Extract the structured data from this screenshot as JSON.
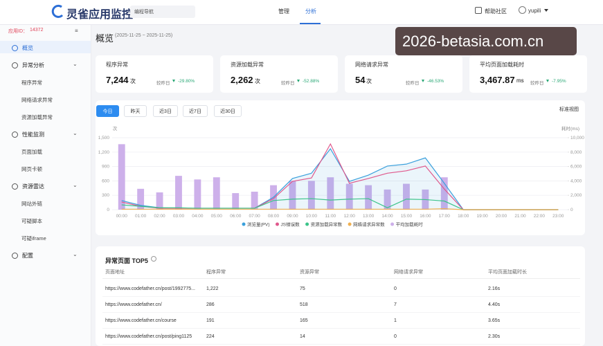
{
  "header": {
    "logo": "灵雀应用监控",
    "search": "编程导航",
    "nav": [
      "管理",
      "分析"
    ],
    "active_nav": 1,
    "help": "帮助社区",
    "user": "yupili"
  },
  "sidebar": {
    "app_id_label": "应用ID：",
    "app_id": "14372",
    "active": 0,
    "groups": [
      {
        "label": "概览",
        "children": []
      },
      {
        "label": "异常分析",
        "children": [
          "程序异常",
          "网络请求异常",
          "资源加载异常"
        ]
      },
      {
        "label": "性能监测",
        "children": [
          "页面加载",
          "网页卡顿"
        ]
      },
      {
        "label": "资源雷达",
        "children": [
          "网站外链",
          "可疑脚本",
          "可疑iframe"
        ]
      },
      {
        "label": "配置",
        "children": []
      }
    ]
  },
  "watermark": "2026-betasia.com.cn",
  "overview": {
    "title": "概览",
    "range": "(2025-11-25 ~ 2025-11-25)",
    "stats": [
      {
        "label": "程序异常",
        "value": "7,244",
        "unit": "次",
        "compare": "较昨日",
        "change": "-29.80%"
      },
      {
        "label": "资源加载异常",
        "value": "2,262",
        "unit": "次",
        "compare": "较昨日",
        "change": "-52.88%"
      },
      {
        "label": "网络请求异常",
        "value": "54",
        "unit": "次",
        "compare": "较昨日",
        "change": "-46.53%"
      },
      {
        "label": "平均页面加载耗时",
        "value": "3,467.87",
        "unit": "ms",
        "compare": "较昨日",
        "change": "-7.95%"
      }
    ],
    "tabs": [
      "今日",
      "昨天",
      "近3日",
      "近7日",
      "近30日"
    ],
    "active_tab": 0,
    "view": "标准视图"
  },
  "chart_data": {
    "type": "combo",
    "y_label": "次",
    "y2_label": "耗时(ms)",
    "categories": [
      "00:00",
      "01:00",
      "02:00",
      "03:00",
      "04:00",
      "05:00",
      "06:00",
      "07:00",
      "08:00",
      "09:00",
      "10:00",
      "11:00",
      "12:00",
      "13:00",
      "14:00",
      "15:00",
      "16:00",
      "17:00",
      "18:00",
      "19:00",
      "20:00",
      "21:00",
      "22:00",
      "23:00"
    ],
    "ylim": [
      0,
      1500
    ],
    "yticks": [
      0,
      300,
      600,
      900,
      {
        "value": 1200,
        "label": "1,200"
      },
      {
        "value": 1500,
        "label": "1,500"
      }
    ],
    "y2lim": [
      0,
      10000
    ],
    "y2ticks": [
      0,
      {
        "value": 2000,
        "label": "2,000"
      },
      {
        "value": 4000,
        "label": "4,000"
      },
      {
        "value": 6000,
        "label": "6,000"
      },
      {
        "value": 8000,
        "label": "8,000"
      },
      {
        "value": 10000,
        "label": "10,000"
      }
    ],
    "grid": true,
    "series": [
      {
        "name": "浏览量(PV)",
        "kind": "line",
        "area": true,
        "color": "#3aa0dc",
        "values": [
          190,
          90,
          40,
          30,
          30,
          30,
          30,
          30,
          260,
          650,
          760,
          1270,
          590,
          720,
          910,
          950,
          1080,
          550,
          0,
          0,
          0,
          0,
          0,
          0
        ]
      },
      {
        "name": "JS错误数",
        "kind": "line",
        "color": "#e0588c",
        "values": [
          160,
          70,
          30,
          30,
          30,
          30,
          30,
          30,
          230,
          590,
          660,
          1370,
          550,
          650,
          760,
          810,
          910,
          430,
          0,
          0,
          0,
          0,
          0,
          0
        ]
      },
      {
        "name": "资源加载异常数",
        "kind": "line",
        "color": "#3cc48a",
        "values": [
          100,
          70,
          40,
          40,
          30,
          30,
          30,
          30,
          190,
          220,
          230,
          200,
          220,
          230,
          40,
          220,
          210,
          180,
          0,
          0,
          0,
          0,
          0,
          0
        ]
      },
      {
        "name": "网络请求异常数",
        "kind": "line",
        "color": "#f0b050",
        "values": [
          10,
          10,
          10,
          10,
          10,
          10,
          10,
          10,
          10,
          10,
          10,
          10,
          10,
          10,
          10,
          10,
          10,
          20,
          0,
          0,
          0,
          0,
          0,
          0
        ]
      },
      {
        "name": "平均加载耗时",
        "kind": "bar",
        "axis": "y2",
        "color": "#cdb0ea",
        "values": [
          9100,
          2900,
          2400,
          4700,
          4200,
          4500,
          2300,
          2500,
          3400,
          4000,
          4000,
          4500,
          3600,
          3400,
          2800,
          3600,
          2800,
          4500,
          0,
          0,
          0,
          0,
          0,
          0
        ]
      }
    ]
  },
  "table": {
    "title": "异常页面 TOP5",
    "columns": [
      "页面地址",
      "程序异常",
      "资源异常",
      "网络请求异常",
      "平均页面加载时长"
    ],
    "rows": [
      [
        "https://www.codefather.cn/post/1992775...",
        "1,222",
        "75",
        "0",
        "2.16s"
      ],
      [
        "https://www.codefather.cn/",
        "286",
        "518",
        "7",
        "4.40s"
      ],
      [
        "https://www.codefather.cn/course",
        "191",
        "165",
        "1",
        "3.65s"
      ],
      [
        "https://www.codefather.cn/post/ping1125",
        "224",
        "14",
        "0",
        "2.30s"
      ]
    ]
  }
}
